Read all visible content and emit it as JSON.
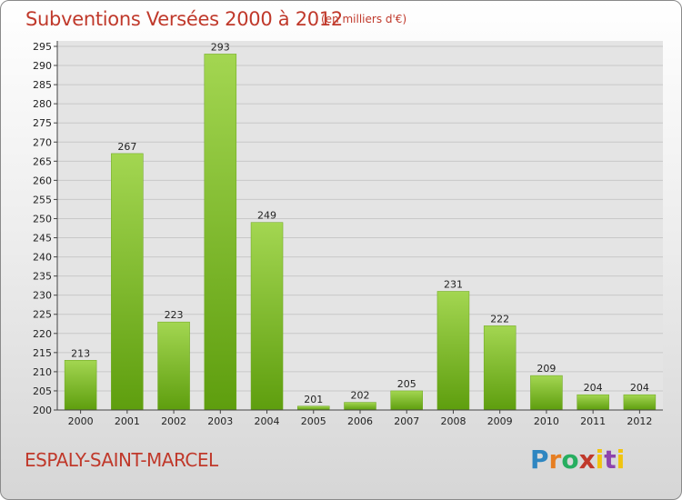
{
  "header": {
    "title": "Subventions Versées 2000 à 2012",
    "unit": "(en milliers d'€)"
  },
  "footer": {
    "commune": "ESPALY-SAINT-MARCEL",
    "logo_text": "Proxiti"
  },
  "colors": {
    "title": "#c0392b",
    "bar_light": "#a3d651",
    "bar_dark": "#5e9e0e",
    "logo_p": "#2e86c1",
    "logo_r": "#e67e22",
    "logo_o": "#27ae60",
    "logo_x": "#c0392b",
    "logo_i": "#f1c40f",
    "logo_t": "#8e44ad"
  },
  "chart_data": {
    "type": "bar",
    "title": "Subventions Versées 2000 à 2012",
    "xlabel": "",
    "ylabel": "",
    "categories": [
      "2000",
      "2001",
      "2002",
      "2003",
      "2004",
      "2005",
      "2006",
      "2007",
      "2008",
      "2009",
      "2010",
      "2011",
      "2012"
    ],
    "values": [
      213,
      267,
      223,
      293,
      249,
      201,
      202,
      205,
      231,
      222,
      209,
      204,
      204
    ],
    "ylim": [
      200,
      295
    ],
    "yticks": [
      200,
      205,
      210,
      215,
      220,
      225,
      230,
      235,
      240,
      245,
      250,
      255,
      260,
      265,
      270,
      275,
      280,
      285,
      290,
      295
    ],
    "grid": true,
    "legend": "none"
  }
}
